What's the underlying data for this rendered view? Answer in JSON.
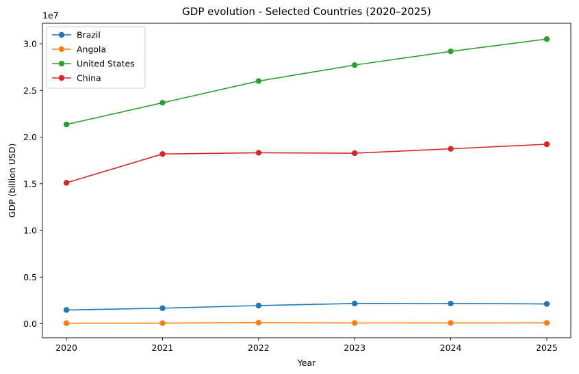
{
  "chart_data": {
    "type": "line",
    "title": "GDP evolution - Selected Countries (2020–2025)",
    "xlabel": "Year",
    "ylabel": "GDP (billion USD)",
    "y_offset_label": "1e7",
    "x": [
      2020,
      2021,
      2022,
      2023,
      2024,
      2025
    ],
    "x_tick_labels": [
      "2020",
      "2021",
      "2022",
      "2023",
      "2024",
      "2025"
    ],
    "ylim": [
      -1500000,
      32200000
    ],
    "y_ticks": [
      0,
      5000000,
      10000000,
      15000000,
      20000000,
      25000000,
      30000000
    ],
    "y_tick_labels": [
      "0.0",
      "0.5",
      "1.0",
      "1.5",
      "2.0",
      "2.5",
      "3.0"
    ],
    "legend_position": "upper-left",
    "marker": "circle",
    "grid": false,
    "series": [
      {
        "name": "Brazil",
        "color": "#1f77b4",
        "values": [
          1476000,
          1670000,
          1952000,
          2174000,
          2171000,
          2125000
        ]
      },
      {
        "name": "Angola",
        "color": "#ff7f0e",
        "values": [
          58000,
          70000,
          122000,
          85000,
          90000,
          95000
        ]
      },
      {
        "name": "United States",
        "color": "#2ca02c",
        "values": [
          21354000,
          23681000,
          26007000,
          27721000,
          29185000,
          30507000
        ]
      },
      {
        "name": "China",
        "color": "#d62728",
        "values": [
          15103000,
          18190000,
          18322000,
          18276000,
          18748000,
          19232000
        ]
      }
    ]
  }
}
